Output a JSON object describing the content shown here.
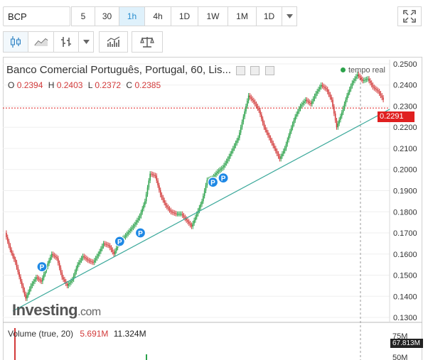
{
  "toolbar": {
    "symbol": "BCP",
    "intervals": [
      "5",
      "30",
      "1h",
      "4h",
      "1D",
      "1W",
      "1M",
      "1D"
    ],
    "active_interval": "1h"
  },
  "legend": {
    "title": "Banco Comercial Português, Portugal, 60, Lis...",
    "o_label": "O",
    "o_value": "0.2394",
    "h_label": "H",
    "h_value": "0.2403",
    "l_label": "L",
    "l_value": "0.2372",
    "c_label": "C",
    "c_value": "0.2385",
    "realtime": "tempo real"
  },
  "volume": {
    "label": "Volume (true, 20)",
    "value1": "5.691M",
    "value2": "11.324M",
    "tag": "67.813M",
    "axis_ticks": [
      "75M",
      "50M"
    ]
  },
  "watermark": {
    "brand": "Investing",
    "suffix": ".com"
  },
  "colors": {
    "up": "#2ca24b",
    "down": "#d23a3a",
    "trend": "#3aa89a",
    "last_price": "#e02020",
    "marker": "#1e88e5"
  },
  "icons": [
    "candles-icon",
    "line-chart-icon",
    "bar-type-icon",
    "chevron-down-icon",
    "indicators-icon",
    "compare-scale-icon",
    "fullscreen-icon"
  ],
  "chart_data": {
    "type": "line",
    "y_ticks": [
      "0.2500",
      "0.2400",
      "0.2300",
      "0.2200",
      "0.2100",
      "0.2000",
      "0.1900",
      "0.1800",
      "0.1700",
      "0.1600",
      "0.1500",
      "0.1400",
      "0.1300"
    ],
    "ylim": [
      0.128,
      0.252
    ],
    "last_price": "0.2291",
    "series": [
      {
        "values": [
          0.17,
          0.162,
          0.156,
          0.147,
          0.139,
          0.145,
          0.149,
          0.147,
          0.154,
          0.16,
          0.158,
          0.149,
          0.145,
          0.148,
          0.155,
          0.159,
          0.157,
          0.156,
          0.16,
          0.165,
          0.164,
          0.16,
          0.166,
          0.168,
          0.171,
          0.174,
          0.178,
          0.185,
          0.198,
          0.197,
          0.188,
          0.183,
          0.18,
          0.179,
          0.179,
          0.176,
          0.173,
          0.179,
          0.185,
          0.195,
          0.196,
          0.199,
          0.201,
          0.205,
          0.21,
          0.215,
          0.225,
          0.235,
          0.232,
          0.228,
          0.22,
          0.215,
          0.21,
          0.205,
          0.21,
          0.218,
          0.225,
          0.23,
          0.233,
          0.231,
          0.236,
          0.24,
          0.238,
          0.233,
          0.22,
          0.227,
          0.235,
          0.241,
          0.245,
          0.242,
          0.243,
          0.239,
          0.237,
          0.233
        ]
      }
    ],
    "trendline": {
      "from": 0.133,
      "to": 0.2285
    },
    "markers": [
      {
        "label": "P",
        "value": 0.154,
        "index": 7
      },
      {
        "label": "P",
        "value": 0.166,
        "index": 22
      },
      {
        "label": "P",
        "value": 0.17,
        "index": 26
      },
      {
        "label": "P",
        "value": 0.194,
        "index": 40
      },
      {
        "label": "P",
        "value": 0.196,
        "index": 42
      }
    ]
  }
}
